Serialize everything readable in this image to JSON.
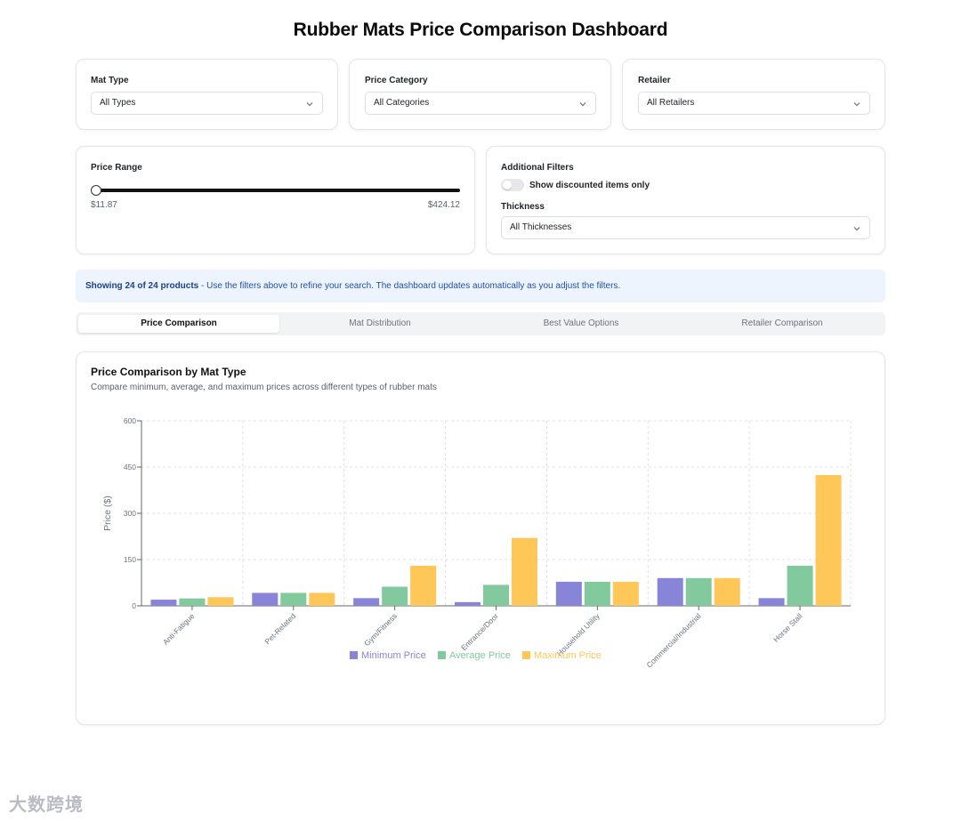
{
  "page": {
    "title": "Rubber Mats Price Comparison Dashboard"
  },
  "filters": {
    "mat_type": {
      "label": "Mat Type",
      "value": "All Types"
    },
    "price_category": {
      "label": "Price Category",
      "value": "All Categories"
    },
    "retailer": {
      "label": "Retailer",
      "value": "All Retailers"
    },
    "price_range": {
      "label": "Price Range",
      "min_label": "$11.87",
      "max_label": "$424.12"
    },
    "additional": {
      "label": "Additional Filters",
      "discount_toggle_label": "Show discounted items only",
      "discount_toggle_on": false,
      "thickness_label": "Thickness",
      "thickness_value": "All Thicknesses"
    }
  },
  "info": {
    "count_text": "Showing 24 of 24 products",
    "message": " - Use the filters above to refine your search. The dashboard updates automatically as you adjust the filters."
  },
  "tabs": [
    {
      "label": "Price Comparison",
      "active": true
    },
    {
      "label": "Mat Distribution",
      "active": false
    },
    {
      "label": "Best Value Options",
      "active": false
    },
    {
      "label": "Retailer Comparison",
      "active": false
    }
  ],
  "panel": {
    "title": "Price Comparison by Mat Type",
    "subtitle": "Compare minimum, average, and maximum prices across different types of rubber mats"
  },
  "chart_data": {
    "type": "bar",
    "categories": [
      "Anti-Fatigue",
      "Pet-Related",
      "Gym/Fitness",
      "Entrance/Door",
      "Household Utility",
      "Commercial/Industrial",
      "Horse Stall"
    ],
    "series": [
      {
        "name": "Minimum Price",
        "color": "#8884d8",
        "values": [
          20,
          42,
          25,
          12,
          78,
          90,
          25
        ]
      },
      {
        "name": "Average Price",
        "color": "#82ca9d",
        "values": [
          24,
          42,
          62,
          68,
          78,
          90,
          130
        ]
      },
      {
        "name": "Maximum Price",
        "color": "#ffc658",
        "values": [
          28,
          42,
          130,
          220,
          78,
          90,
          424
        ]
      }
    ],
    "ylabel": "Price ($)",
    "ylim": [
      0,
      600
    ],
    "yticks": [
      0,
      150,
      300,
      450,
      600
    ],
    "grid": true,
    "legend": "bottom"
  },
  "watermark": {
    "text": "大数跨境"
  }
}
